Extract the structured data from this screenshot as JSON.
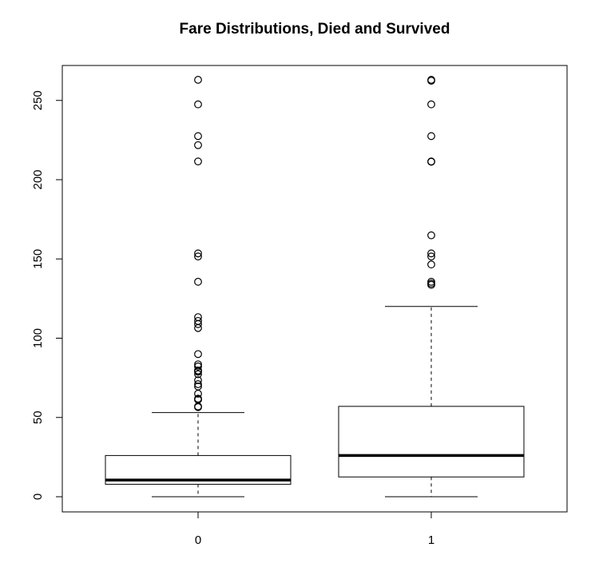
{
  "chart_data": {
    "type": "boxplot",
    "title": "Fare Distributions, Died and Survived",
    "xlabel": "",
    "ylabel": "",
    "categories": [
      "0",
      "1"
    ],
    "ylim": [
      0,
      263
    ],
    "yticks": [
      0,
      50,
      100,
      150,
      200,
      250
    ],
    "grid": false,
    "boxes": [
      {
        "category": "0",
        "whisker_low": 0,
        "q1": 7.85,
        "median": 10.5,
        "q3": 26,
        "whisker_high": 53.1,
        "outliers": [
          56.5,
          57,
          61.2,
          61.4,
          61.9,
          65,
          69.55,
          71,
          73.5,
          77.3,
          78.85,
          79.2,
          79.65,
          82.2,
          83.5,
          90,
          106.4,
          108.9,
          110.9,
          113.3,
          135.6,
          151.55,
          153.5,
          211.5,
          221.8,
          227.5,
          247.5,
          263
        ]
      },
      {
        "category": "1",
        "whisker_low": 0,
        "q1": 12.48,
        "median": 26,
        "q3": 57,
        "whisker_high": 120,
        "outliers": [
          133.65,
          134.5,
          135.6,
          146.5,
          151.55,
          153.5,
          164.9,
          211.3,
          211.5,
          227.5,
          247.5,
          262.4,
          263
        ]
      }
    ]
  }
}
